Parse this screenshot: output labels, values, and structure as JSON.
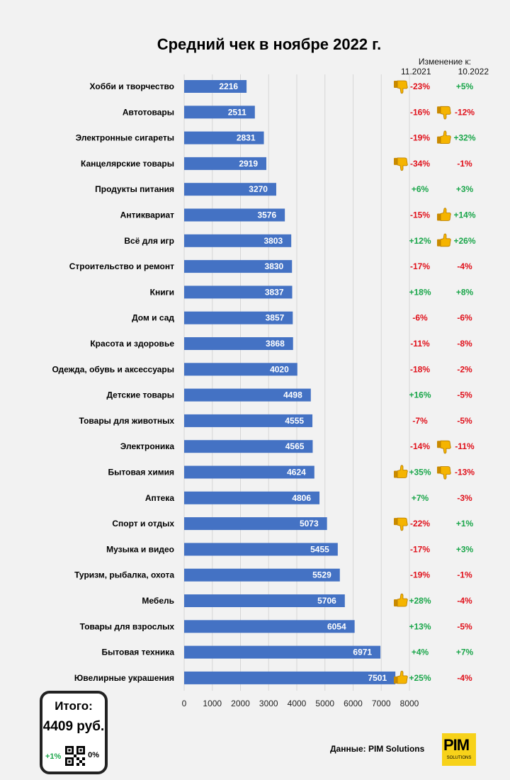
{
  "title": "Средний чек в ноябре 2022 г.",
  "change_header": {
    "label": "Изменение к:",
    "col1": "11.2021",
    "col2": "10.2022"
  },
  "colors": {
    "bar": "#4472c4",
    "positive": "#1aa64a",
    "negative": "#e0101a",
    "thumb": "#f5b400"
  },
  "chart_data": {
    "type": "bar",
    "orientation": "horizontal",
    "title": "Средний чек в ноябре 2022 г.",
    "xlim": [
      0,
      8000
    ],
    "x_ticks": [
      0,
      1000,
      2000,
      3000,
      4000,
      5000,
      6000,
      7000,
      8000
    ],
    "grid": true,
    "categories": [
      "Хобби и творчество",
      "Автотовары",
      "Электронные сигареты",
      "Канцелярские товары",
      "Продукты питания",
      "Антиквариат",
      "Всё для игр",
      "Строительство и ремонт",
      "Книги",
      "Дом и сад",
      "Красота и здоровье",
      "Одежда, обувь и аксессуары",
      "Детские товары",
      "Товары для животных",
      "Электроника",
      "Бытовая химия",
      "Аптека",
      "Спорт и отдых",
      "Музыка и видео",
      "Туризм, рыбалка, охота",
      "Мебель",
      "Товары для взрослых",
      "Бытовая техника",
      "Ювелирные украшения"
    ],
    "values": [
      2216,
      2511,
      2831,
      2919,
      3270,
      3576,
      3803,
      3830,
      3837,
      3857,
      3868,
      4020,
      4498,
      4555,
      4565,
      4624,
      4806,
      5073,
      5455,
      5529,
      5706,
      6054,
      6971,
      7501
    ],
    "change_vs_11_2021": [
      "-23%",
      "-16%",
      "-19%",
      "-34%",
      "+6%",
      "-15%",
      "+12%",
      "-17%",
      "+18%",
      "-6%",
      "-11%",
      "-18%",
      "+16%",
      "-7%",
      "-14%",
      "+35%",
      "+7%",
      "-22%",
      "-17%",
      "-19%",
      "+28%",
      "+13%",
      "+4%",
      "+25%"
    ],
    "change_vs_10_2022": [
      "+5%",
      "-12%",
      "+32%",
      "-1%",
      "+3%",
      "+14%",
      "+26%",
      "-4%",
      "+8%",
      "-6%",
      "-8%",
      "-2%",
      "-5%",
      "-5%",
      "-11%",
      "-13%",
      "-3%",
      "+1%",
      "+3%",
      "-1%",
      "-4%",
      "-5%",
      "+7%",
      "-4%"
    ],
    "thumbs_col1": [
      "down",
      "",
      "",
      "down",
      "",
      "",
      "",
      "",
      "",
      "",
      "",
      "",
      "",
      "",
      "",
      "up",
      "",
      "down",
      "",
      "",
      "up",
      "",
      "",
      "up"
    ],
    "thumbs_col2": [
      "",
      "down",
      "up",
      "",
      "",
      "up",
      "up",
      "",
      "",
      "",
      "",
      "",
      "",
      "",
      "down",
      "down",
      "",
      "",
      "",
      "",
      "",
      "",
      "",
      ""
    ]
  },
  "total": {
    "label": "Итого:",
    "value": "4409 руб.",
    "yoy": "+1%",
    "mom": "0%"
  },
  "source": "Данные: PIM Solutions",
  "logo": {
    "text": "PIM",
    "sub": "SOLUTIONS"
  }
}
